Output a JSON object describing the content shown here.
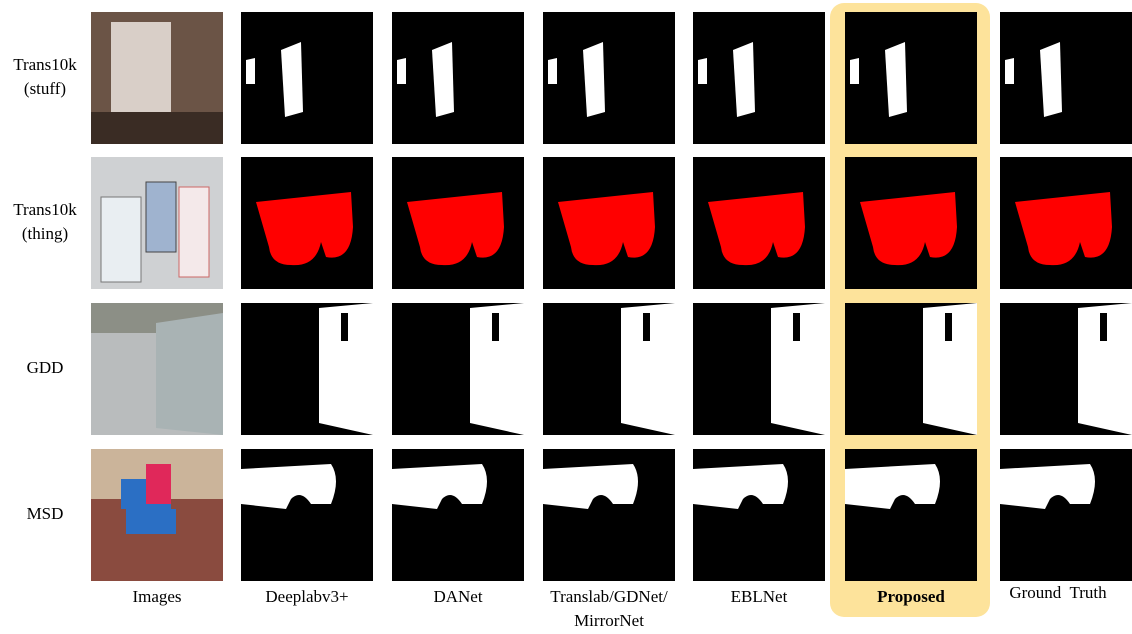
{
  "figure": {
    "rows": [
      {
        "label": [
          "Trans10k",
          "(stuff)"
        ]
      },
      {
        "label": [
          "Trans10k",
          "(thing)"
        ]
      },
      {
        "label": [
          "GDD"
        ]
      },
      {
        "label": [
          "MSD"
        ]
      }
    ],
    "columns": [
      {
        "label": [
          "Images"
        ]
      },
      {
        "label": [
          "Deeplabv3+"
        ]
      },
      {
        "label": [
          "DANet"
        ]
      },
      {
        "label": [
          "Translab/GDNet/",
          "MirrorNet"
        ]
      },
      {
        "label": [
          "EBLNet"
        ]
      },
      {
        "label": [
          "Proposed"
        ],
        "highlight": true
      },
      {
        "label": [
          "Ground  Truth"
        ]
      }
    ]
  }
}
